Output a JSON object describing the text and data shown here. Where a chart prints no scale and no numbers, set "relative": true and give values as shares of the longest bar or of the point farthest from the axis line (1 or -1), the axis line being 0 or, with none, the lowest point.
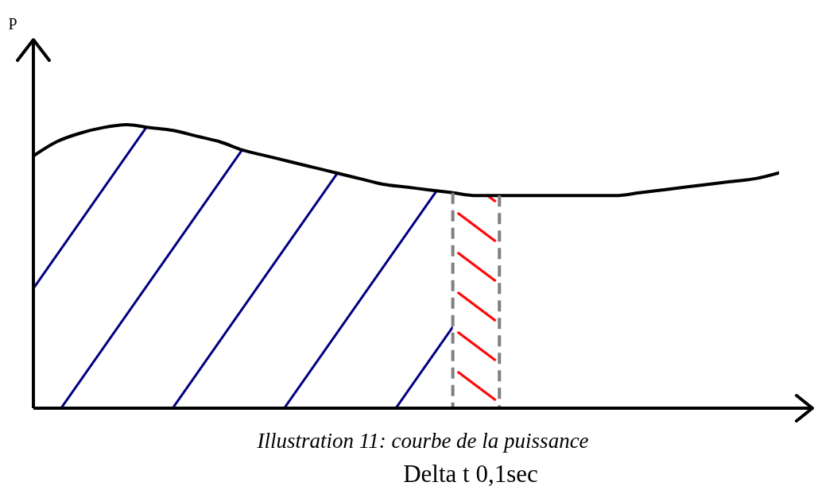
{
  "chart_data": {
    "type": "line",
    "relative": true,
    "annotations": [
      "P",
      "Illustration 11: courbe de la puissance",
      "Delta t 0,1sec"
    ],
    "categories": [
      null,
      null,
      null,
      null,
      null,
      null,
      null,
      null,
      null,
      null,
      null,
      null,
      null,
      null,
      null,
      null,
      null,
      null,
      null,
      null,
      null,
      null,
      null,
      null,
      null,
      null,
      null,
      null,
      null,
      null,
      null,
      null,
      null
    ],
    "series": [
      {
        "type": "area",
        "color": "#000080",
        "values": [
          0.89,
          0.94,
          0.97,
          0.99,
          1,
          0.99,
          0.98,
          0.96,
          0.94,
          0.91,
          0.89,
          0.87,
          0.85,
          0.83,
          0.81,
          0.79,
          0.78,
          0.77,
          0.76,
          null,
          null,
          null,
          null,
          null,
          null,
          null,
          null,
          null,
          null,
          null,
          null,
          null,
          null
        ]
      },
      {
        "type": "area",
        "color": "#ff0000",
        "values": [
          null,
          null,
          null,
          null,
          null,
          null,
          null,
          null,
          null,
          null,
          null,
          null,
          null,
          null,
          null,
          null,
          null,
          null,
          0.76,
          0.75,
          0.75,
          null,
          null,
          null,
          null,
          null,
          null,
          null,
          null,
          null,
          null,
          null,
          null
        ]
      },
      {
        "type": "line",
        "color": "#000000",
        "values": [
          0.89,
          0.94,
          0.97,
          0.99,
          1,
          0.99,
          0.98,
          0.96,
          0.94,
          0.91,
          0.89,
          0.87,
          0.85,
          0.83,
          0.81,
          0.79,
          0.78,
          0.77,
          0.76,
          0.75,
          0.75,
          0.75,
          0.75,
          0.75,
          0.75,
          0.75,
          0.76,
          0.77,
          0.78,
          0.79,
          0.8,
          0.81,
          0.83
        ]
      }
    ]
  }
}
